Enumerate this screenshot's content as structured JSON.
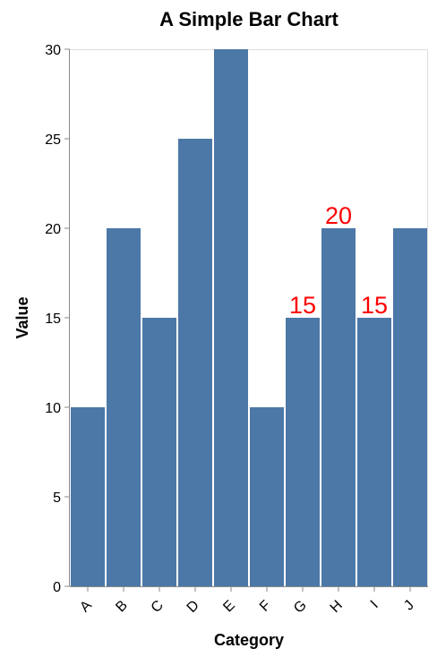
{
  "chart_data": {
    "type": "bar",
    "title": "A Simple Bar Chart",
    "xlabel": "Category",
    "ylabel": "Value",
    "categories": [
      "A",
      "B",
      "C",
      "D",
      "E",
      "F",
      "G",
      "H",
      "I",
      "J"
    ],
    "values": [
      10,
      20,
      15,
      25,
      30,
      10,
      15,
      20,
      15,
      20
    ],
    "ylim": [
      0,
      30
    ],
    "yticks": [
      0,
      5,
      10,
      15,
      20,
      25,
      30
    ],
    "data_labels": [
      {
        "category": "G",
        "text": "15"
      },
      {
        "category": "H",
        "text": "20"
      },
      {
        "category": "I",
        "text": "15"
      }
    ],
    "grid": false,
    "colors": {
      "bar": "#4c78a8",
      "data_label": "#ff0000",
      "axis": "#888888",
      "frame": "#dddddd"
    }
  }
}
